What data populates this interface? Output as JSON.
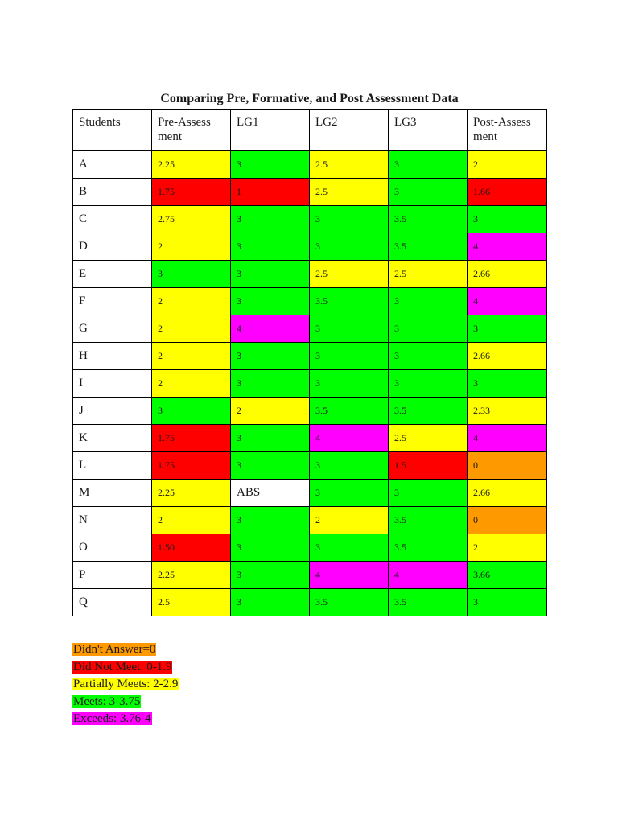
{
  "title": "Comparing Pre, Formative, and Post Assessment Data",
  "colors": {
    "red": "#ff0000",
    "yellow": "#ffff00",
    "green": "#00ff00",
    "magenta": "#ff00ff",
    "orange": "#ff9900",
    "white": "#ffffff"
  },
  "table": {
    "headers": [
      "Students",
      "Pre-Assess ment",
      "LG1",
      "LG2",
      "LG3",
      "Post-Assess ment"
    ],
    "rows": [
      {
        "student": "A",
        "cells": [
          {
            "v": "2.25",
            "c": "yellow"
          },
          {
            "v": "3",
            "c": "green"
          },
          {
            "v": "2.5",
            "c": "yellow"
          },
          {
            "v": "3",
            "c": "green"
          },
          {
            "v": "2",
            "c": "yellow"
          }
        ]
      },
      {
        "student": "B",
        "cells": [
          {
            "v": "1.75",
            "c": "red"
          },
          {
            "v": "1",
            "c": "red"
          },
          {
            "v": "2.5",
            "c": "yellow"
          },
          {
            "v": "3",
            "c": "green"
          },
          {
            "v": "1.66",
            "c": "red"
          }
        ]
      },
      {
        "student": "C",
        "cells": [
          {
            "v": "2.75",
            "c": "yellow"
          },
          {
            "v": "3",
            "c": "green"
          },
          {
            "v": "3",
            "c": "green"
          },
          {
            "v": "3.5",
            "c": "green"
          },
          {
            "v": "3",
            "c": "green"
          }
        ]
      },
      {
        "student": "D",
        "cells": [
          {
            "v": "2",
            "c": "yellow"
          },
          {
            "v": "3",
            "c": "green"
          },
          {
            "v": "3",
            "c": "green"
          },
          {
            "v": "3.5",
            "c": "green"
          },
          {
            "v": "4",
            "c": "magenta"
          }
        ]
      },
      {
        "student": "E",
        "cells": [
          {
            "v": "3",
            "c": "green"
          },
          {
            "v": "3",
            "c": "green"
          },
          {
            "v": "2.5",
            "c": "yellow"
          },
          {
            "v": "2.5",
            "c": "yellow"
          },
          {
            "v": "2.66",
            "c": "yellow"
          }
        ]
      },
      {
        "student": "F",
        "cells": [
          {
            "v": "2",
            "c": "yellow"
          },
          {
            "v": "3",
            "c": "green"
          },
          {
            "v": "3.5",
            "c": "green"
          },
          {
            "v": "3",
            "c": "green"
          },
          {
            "v": "4",
            "c": "magenta"
          }
        ]
      },
      {
        "student": "G",
        "cells": [
          {
            "v": "2",
            "c": "yellow"
          },
          {
            "v": "4",
            "c": "magenta"
          },
          {
            "v": "3",
            "c": "green"
          },
          {
            "v": "3",
            "c": "green"
          },
          {
            "v": "3",
            "c": "green"
          }
        ]
      },
      {
        "student": "H",
        "cells": [
          {
            "v": "2",
            "c": "yellow"
          },
          {
            "v": "3",
            "c": "green"
          },
          {
            "v": "3",
            "c": "green"
          },
          {
            "v": "3",
            "c": "green"
          },
          {
            "v": "2.66",
            "c": "yellow"
          }
        ]
      },
      {
        "student": "I",
        "cells": [
          {
            "v": "2",
            "c": "yellow"
          },
          {
            "v": "3",
            "c": "green"
          },
          {
            "v": "3",
            "c": "green"
          },
          {
            "v": "3",
            "c": "green"
          },
          {
            "v": "3",
            "c": "green"
          }
        ]
      },
      {
        "student": "J",
        "cells": [
          {
            "v": "3",
            "c": "green"
          },
          {
            "v": "2",
            "c": "yellow"
          },
          {
            "v": "3.5",
            "c": "green"
          },
          {
            "v": "3.5",
            "c": "green"
          },
          {
            "v": "2.33",
            "c": "yellow"
          }
        ]
      },
      {
        "student": "K",
        "cells": [
          {
            "v": "1.75",
            "c": "red"
          },
          {
            "v": "3",
            "c": "green"
          },
          {
            "v": "4",
            "c": "magenta"
          },
          {
            "v": "2.5",
            "c": "yellow"
          },
          {
            "v": "4",
            "c": "magenta"
          }
        ]
      },
      {
        "student": "L",
        "cells": [
          {
            "v": "1.75",
            "c": "red"
          },
          {
            "v": "3",
            "c": "green"
          },
          {
            "v": "3",
            "c": "green"
          },
          {
            "v": "1.5",
            "c": "red"
          },
          {
            "v": "0",
            "c": "orange"
          }
        ]
      },
      {
        "student": "M",
        "cells": [
          {
            "v": "2.25",
            "c": "yellow"
          },
          {
            "v": "ABS",
            "c": "white"
          },
          {
            "v": "3",
            "c": "green"
          },
          {
            "v": "3",
            "c": "green"
          },
          {
            "v": "2.66",
            "c": "yellow"
          }
        ]
      },
      {
        "student": "N",
        "cells": [
          {
            "v": "2",
            "c": "yellow"
          },
          {
            "v": "3",
            "c": "green"
          },
          {
            "v": "2",
            "c": "yellow"
          },
          {
            "v": "3.5",
            "c": "green"
          },
          {
            "v": "0",
            "c": "orange"
          }
        ]
      },
      {
        "student": "O",
        "cells": [
          {
            "v": "1.50",
            "c": "red"
          },
          {
            "v": "3",
            "c": "green"
          },
          {
            "v": "3",
            "c": "green"
          },
          {
            "v": "3.5",
            "c": "green"
          },
          {
            "v": "2",
            "c": "yellow"
          }
        ]
      },
      {
        "student": "P",
        "cells": [
          {
            "v": "2.25",
            "c": "yellow"
          },
          {
            "v": "3",
            "c": "green"
          },
          {
            "v": "4",
            "c": "magenta"
          },
          {
            "v": "4",
            "c": "magenta"
          },
          {
            "v": "3.66",
            "c": "green"
          }
        ]
      },
      {
        "student": "Q",
        "cells": [
          {
            "v": "2.5",
            "c": "yellow"
          },
          {
            "v": "3",
            "c": "green"
          },
          {
            "v": "3.5",
            "c": "green"
          },
          {
            "v": "3.5",
            "c": "green"
          },
          {
            "v": "3",
            "c": "green"
          }
        ]
      }
    ]
  },
  "legend": [
    {
      "label": "Didn't Answer=0",
      "c": "orange"
    },
    {
      "label": "Did Not Meet: 0-1.9",
      "c": "red"
    },
    {
      "label": "Partially Meets: 2-2.9",
      "c": "yellow"
    },
    {
      "label": "Meets: 3-3.75",
      "c": "green"
    },
    {
      "label": "Exceeds: 3.76-4",
      "c": "magenta"
    }
  ]
}
